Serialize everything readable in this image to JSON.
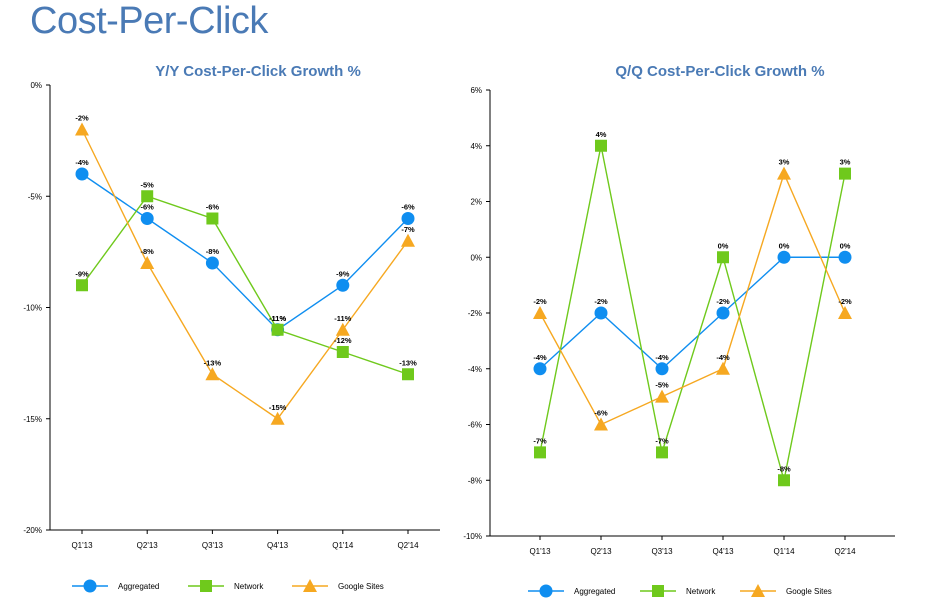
{
  "page": {
    "title": "Cost-Per-Click"
  },
  "chart_data": [
    {
      "type": "line",
      "title": "Y/Y Cost-Per-Click Growth %",
      "xlabel": "",
      "ylabel": "",
      "categories": [
        "Q1'13",
        "Q2'13",
        "Q3'13",
        "Q4'13",
        "Q1'14",
        "Q2'14"
      ],
      "ylim": [
        -20,
        0
      ],
      "yticks": [
        0,
        -5,
        -10,
        -15,
        -20
      ],
      "ytick_labels": [
        "0%",
        "-5%",
        "-10%",
        "-15%",
        "-20%"
      ],
      "grid": false,
      "legend": "bottom",
      "series": [
        {
          "name": "Aggregated",
          "marker": "circle",
          "color": "#0f8ef0",
          "values": [
            -4,
            -6,
            -8,
            -11,
            -9,
            -6
          ],
          "labels": [
            "-4%",
            "-6%",
            "-8%",
            "-11%",
            "-9%",
            "-6%"
          ]
        },
        {
          "name": "Network",
          "marker": "square",
          "color": "#6fc91c",
          "values": [
            -9,
            -5,
            -6,
            -11,
            -12,
            -13
          ],
          "labels": [
            "-9%",
            "-5%",
            "-6%",
            "-11%",
            "-12%",
            "-13%"
          ]
        },
        {
          "name": "Google Sites",
          "marker": "triangle",
          "color": "#f6a821",
          "values": [
            -2,
            -8,
            -13,
            -15,
            -11,
            -7
          ],
          "labels": [
            "-2%",
            "-8%",
            "-13%",
            "-15%",
            "-11%",
            "-7%"
          ]
        }
      ]
    },
    {
      "type": "line",
      "title": "Q/Q Cost-Per-Click Growth %",
      "xlabel": "",
      "ylabel": "",
      "categories": [
        "Q1'13",
        "Q2'13",
        "Q3'13",
        "Q4'13",
        "Q1'14",
        "Q2'14"
      ],
      "ylim": [
        -10,
        6
      ],
      "yticks": [
        6,
        4,
        2,
        0,
        -2,
        -4,
        -6,
        -8,
        -10
      ],
      "ytick_labels": [
        "6%",
        "4%",
        "2%",
        "0%",
        "-2%",
        "-4%",
        "-6%",
        "-8%",
        "-10%"
      ],
      "grid": false,
      "legend": "bottom",
      "series": [
        {
          "name": "Aggregated",
          "marker": "circle",
          "color": "#0f8ef0",
          "values": [
            -4,
            -2,
            -4,
            -2,
            0,
            0
          ],
          "labels": [
            "-4%",
            "-2%",
            "-4%",
            "-2%",
            "0%",
            "0%"
          ]
        },
        {
          "name": "Network",
          "marker": "square",
          "color": "#6fc91c",
          "values": [
            -7,
            4,
            -7,
            0,
            -8,
            3
          ],
          "labels": [
            "-7%",
            "4%",
            "-7%",
            "0%",
            "-8%",
            "3%"
          ]
        },
        {
          "name": "Google Sites",
          "marker": "triangle",
          "color": "#f6a821",
          "values": [
            -2,
            -6,
            -5,
            -4,
            3,
            -2
          ],
          "labels": [
            "-2%",
            "-6%",
            "-5%",
            "-4%",
            "3%",
            "-2%"
          ]
        }
      ]
    }
  ]
}
